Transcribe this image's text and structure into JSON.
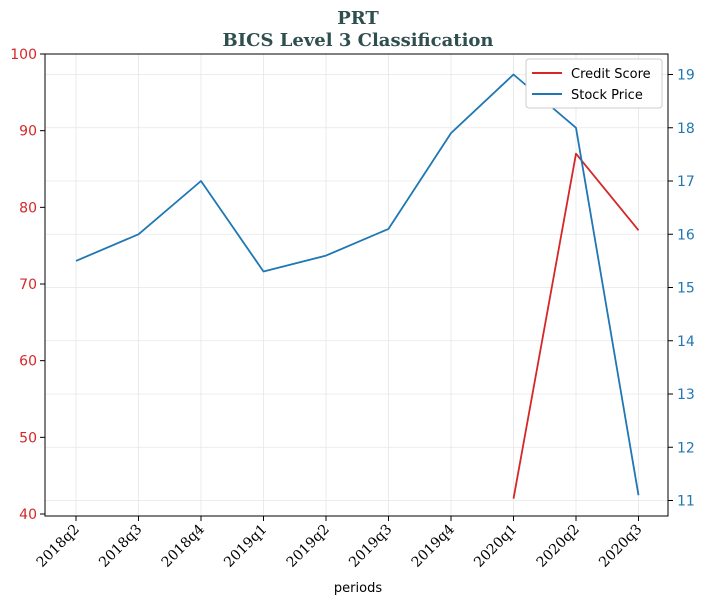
{
  "chart_data": {
    "type": "line",
    "title": "PRT",
    "subtitle": "BICS Level 3 Classification",
    "xlabel": "periods",
    "categories": [
      "2018q2",
      "2018q3",
      "2018q4",
      "2019q1",
      "2019q2",
      "2019q3",
      "2019q4",
      "2020q1",
      "2020q2",
      "2020q3"
    ],
    "y_left": {
      "ylim": [
        40,
        100
      ],
      "ticks": [
        40,
        50,
        60,
        70,
        80,
        90,
        100
      ],
      "color": "#d62728"
    },
    "y_right": {
      "ylim": [
        10.75,
        19.4
      ],
      "ticks": [
        11,
        12,
        13,
        14,
        15,
        16,
        17,
        18,
        19
      ],
      "color": "#1f77b4"
    },
    "series": [
      {
        "name": "Credit Score",
        "axis": "left",
        "color": "#d62728",
        "values": [
          null,
          null,
          null,
          null,
          null,
          null,
          null,
          42,
          87,
          77
        ]
      },
      {
        "name": "Stock Price",
        "axis": "right",
        "color": "#1f77b4",
        "values": [
          15.5,
          16.0,
          17.0,
          15.3,
          15.6,
          16.1,
          17.9,
          19.0,
          18.0,
          11.1
        ]
      }
    ],
    "grid": true,
    "legend_position": "top-right"
  }
}
